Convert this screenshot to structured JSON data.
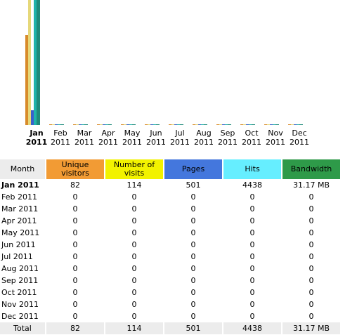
{
  "chart_data": {
    "type": "bar",
    "categories": [
      "Jan 2011",
      "Feb 2011",
      "Mar 2011",
      "Apr 2011",
      "May 2011",
      "Jun 2011",
      "Jul 2011",
      "Aug 2011",
      "Sep 2011",
      "Oct 2011",
      "Nov 2011",
      "Dec 2011"
    ],
    "series": [
      {
        "name": "Unique visitors",
        "color": "#d88b2b",
        "values": [
          82,
          0,
          0,
          0,
          0,
          0,
          0,
          0,
          0,
          0,
          0,
          0
        ]
      },
      {
        "name": "Number of visits",
        "color": "#e6d87a",
        "values": [
          114,
          0,
          0,
          0,
          0,
          0,
          0,
          0,
          0,
          0,
          0,
          0
        ]
      },
      {
        "name": "Pages",
        "color": "#3a5fcd",
        "values": [
          501,
          0,
          0,
          0,
          0,
          0,
          0,
          0,
          0,
          0,
          0,
          0
        ]
      },
      {
        "name": "Hits",
        "color": "#20b2aa",
        "values": [
          4438,
          0,
          0,
          0,
          0,
          0,
          0,
          0,
          0,
          0,
          0,
          0
        ]
      },
      {
        "name": "Bandwidth",
        "color": "#1f8a7a",
        "values": [
          31.17,
          0,
          0,
          0,
          0,
          0,
          0,
          0,
          0,
          0,
          0,
          0
        ]
      }
    ]
  },
  "axis": {
    "months": [
      {
        "m": "Jan",
        "y": "2011"
      },
      {
        "m": "Feb",
        "y": "2011"
      },
      {
        "m": "Mar",
        "y": "2011"
      },
      {
        "m": "Apr",
        "y": "2011"
      },
      {
        "m": "May",
        "y": "2011"
      },
      {
        "m": "Jun",
        "y": "2011"
      },
      {
        "m": "Jul",
        "y": "2011"
      },
      {
        "m": "Aug",
        "y": "2011"
      },
      {
        "m": "Sep",
        "y": "2011"
      },
      {
        "m": "Oct",
        "y": "2011"
      },
      {
        "m": "Nov",
        "y": "2011"
      },
      {
        "m": "Dec",
        "y": "2011"
      }
    ]
  },
  "table": {
    "headers": {
      "month": "Month",
      "unique": "Unique visitors",
      "visits": "Number of visits",
      "pages": "Pages",
      "hits": "Hits",
      "bandwidth": "Bandwidth"
    },
    "rows": [
      {
        "month": "Jan 2011",
        "unique": "82",
        "visits": "114",
        "pages": "501",
        "hits": "4438",
        "bandwidth": "31.17 MB"
      },
      {
        "month": "Feb 2011",
        "unique": "0",
        "visits": "0",
        "pages": "0",
        "hits": "0",
        "bandwidth": "0"
      },
      {
        "month": "Mar 2011",
        "unique": "0",
        "visits": "0",
        "pages": "0",
        "hits": "0",
        "bandwidth": "0"
      },
      {
        "month": "Apr 2011",
        "unique": "0",
        "visits": "0",
        "pages": "0",
        "hits": "0",
        "bandwidth": "0"
      },
      {
        "month": "May 2011",
        "unique": "0",
        "visits": "0",
        "pages": "0",
        "hits": "0",
        "bandwidth": "0"
      },
      {
        "month": "Jun 2011",
        "unique": "0",
        "visits": "0",
        "pages": "0",
        "hits": "0",
        "bandwidth": "0"
      },
      {
        "month": "Jul 2011",
        "unique": "0",
        "visits": "0",
        "pages": "0",
        "hits": "0",
        "bandwidth": "0"
      },
      {
        "month": "Aug 2011",
        "unique": "0",
        "visits": "0",
        "pages": "0",
        "hits": "0",
        "bandwidth": "0"
      },
      {
        "month": "Sep 2011",
        "unique": "0",
        "visits": "0",
        "pages": "0",
        "hits": "0",
        "bandwidth": "0"
      },
      {
        "month": "Oct 2011",
        "unique": "0",
        "visits": "0",
        "pages": "0",
        "hits": "0",
        "bandwidth": "0"
      },
      {
        "month": "Nov 2011",
        "unique": "0",
        "visits": "0",
        "pages": "0",
        "hits": "0",
        "bandwidth": "0"
      },
      {
        "month": "Dec 2011",
        "unique": "0",
        "visits": "0",
        "pages": "0",
        "hits": "0",
        "bandwidth": "0"
      }
    ],
    "total": {
      "month": "Total",
      "unique": "82",
      "visits": "114",
      "pages": "501",
      "hits": "4438",
      "bandwidth": "31.17 MB"
    }
  }
}
